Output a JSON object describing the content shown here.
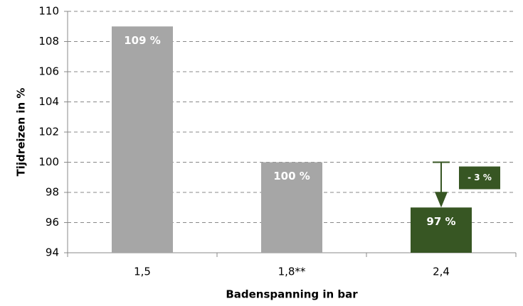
{
  "chart_data": {
    "type": "bar",
    "categories": [
      "1,5",
      "1,8**",
      "2,4"
    ],
    "values": [
      109,
      100,
      97
    ],
    "value_labels": [
      "109 %",
      "100 %",
      "97 %"
    ],
    "colors": [
      "#a6a6a6",
      "#a6a6a6",
      "#375623"
    ],
    "ylim": [
      94,
      110
    ],
    "yticks": [
      94,
      96,
      98,
      100,
      102,
      104,
      106,
      108,
      110
    ],
    "grid": true,
    "y_label": "Tijdreizen in %",
    "x_label": "Badenspanning in bar",
    "annotation": {
      "text": "- 3 %",
      "from": 100,
      "to": 97,
      "color": "#375623"
    }
  }
}
